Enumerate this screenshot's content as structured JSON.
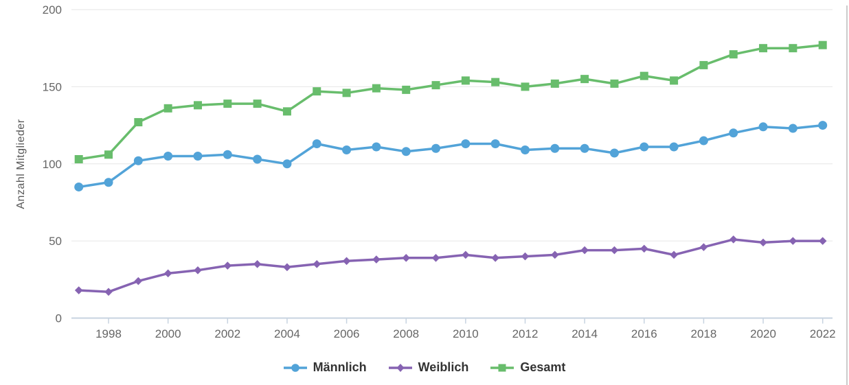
{
  "chart_data": {
    "type": "line",
    "title": "",
    "xlabel": "",
    "ylabel": "Anzahl Mitglieder",
    "x": [
      1997,
      1998,
      1999,
      2000,
      2001,
      2002,
      2003,
      2004,
      2005,
      2006,
      2007,
      2008,
      2009,
      2010,
      2011,
      2012,
      2013,
      2014,
      2015,
      2016,
      2017,
      2018,
      2019,
      2020,
      2021,
      2022
    ],
    "x_tick_labels": [
      "1998",
      "2000",
      "2002",
      "2004",
      "2006",
      "2008",
      "2010",
      "2012",
      "2014",
      "2016",
      "2018",
      "2020",
      "2022"
    ],
    "y_ticks": [
      0,
      50,
      100,
      150,
      200
    ],
    "ylim": [
      0,
      200
    ],
    "grid": true,
    "legend_position": "bottom-center",
    "series": [
      {
        "name": "Männlich",
        "marker": "circle",
        "color": "#52a3d8",
        "values": [
          85,
          88,
          102,
          105,
          105,
          106,
          103,
          100,
          113,
          109,
          111,
          108,
          110,
          113,
          113,
          109,
          110,
          110,
          107,
          111,
          111,
          115,
          120,
          124,
          123,
          125
        ]
      },
      {
        "name": "Weiblich",
        "marker": "diamond",
        "color": "#8663b2",
        "values": [
          18,
          17,
          24,
          29,
          31,
          34,
          35,
          33,
          35,
          37,
          38,
          39,
          39,
          41,
          39,
          40,
          41,
          44,
          44,
          45,
          41,
          46,
          51,
          49,
          50,
          50
        ]
      },
      {
        "name": "Gesamt",
        "marker": "square",
        "color": "#68bd6c",
        "values": [
          103,
          106,
          127,
          136,
          138,
          139,
          139,
          134,
          147,
          146,
          149,
          148,
          151,
          154,
          153,
          150,
          152,
          155,
          152,
          157,
          154,
          164,
          171,
          175,
          175,
          177
        ]
      }
    ],
    "colors": {
      "gridline": "#e6e6e6",
      "axis_line": "#c7d3e0",
      "tick_label": "#666666",
      "axis_title": "#595959",
      "legend_text": "#333333",
      "frame_border": "#cccccc",
      "background": "#ffffff"
    }
  }
}
